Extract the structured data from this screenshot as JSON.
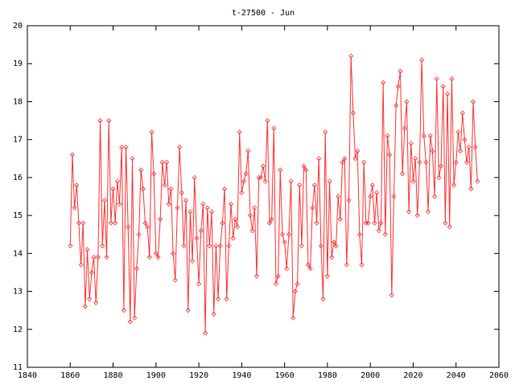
{
  "chart_data": {
    "type": "line",
    "title": "t-27500 - Jun",
    "x": [
      1860,
      1861,
      1862,
      1863,
      1864,
      1865,
      1866,
      1867,
      1868,
      1869,
      1870,
      1871,
      1872,
      1873,
      1874,
      1875,
      1876,
      1877,
      1878,
      1879,
      1880,
      1881,
      1882,
      1883,
      1884,
      1885,
      1886,
      1887,
      1888,
      1889,
      1890,
      1891,
      1892,
      1893,
      1894,
      1895,
      1896,
      1897,
      1898,
      1899,
      1900,
      1901,
      1902,
      1903,
      1904,
      1905,
      1906,
      1907,
      1908,
      1909,
      1910,
      1911,
      1912,
      1913,
      1914,
      1915,
      1916,
      1917,
      1918,
      1919,
      1920,
      1921,
      1922,
      1923,
      1924,
      1925,
      1926,
      1927,
      1928,
      1929,
      1930,
      1931,
      1932,
      1933,
      1934,
      1935,
      1936,
      1937,
      1938,
      1939,
      1940,
      1941,
      1942,
      1943,
      1944,
      1945,
      1946,
      1947,
      1948,
      1949,
      1950,
      1951,
      1952,
      1953,
      1954,
      1955,
      1956,
      1957,
      1958,
      1959,
      1960,
      1961,
      1962,
      1963,
      1964,
      1965,
      1966,
      1967,
      1968,
      1969,
      1970,
      1971,
      1972,
      1973,
      1974,
      1975,
      1976,
      1977,
      1978,
      1979,
      1980,
      1981,
      1982,
      1983,
      1984,
      1985,
      1986,
      1987,
      1988,
      1989,
      1990,
      1991,
      1992,
      1993,
      1994,
      1995,
      1996,
      1997,
      1998,
      1999,
      2000,
      2001,
      2002,
      2003,
      2004,
      2005,
      2006,
      2007,
      2008,
      2009,
      2010,
      2011,
      2012,
      2013,
      2014,
      2015,
      2016,
      2017,
      2018,
      2019,
      2020,
      2021,
      2022,
      2023,
      2024,
      2025,
      2026,
      2027,
      2028,
      2029,
      2030,
      2031,
      2032,
      2033,
      2034,
      2035,
      2036,
      2037,
      2038,
      2039,
      2040,
      2041,
      2042,
      2043,
      2044,
      2045,
      2046,
      2047,
      2048,
      2049,
      2050
    ],
    "series": [
      {
        "color": "#ff3333",
        "values": [
          14.2,
          16.6,
          15.2,
          15.8,
          14.8,
          13.7,
          14.8,
          12.6,
          14.1,
          12.8,
          13.5,
          13.9,
          12.7,
          13.9,
          17.5,
          14.2,
          15.4,
          13.9,
          17.5,
          14.8,
          15.7,
          14.8,
          15.9,
          15.3,
          16.8,
          12.5,
          16.8,
          14.7,
          12.2,
          16.5,
          12.3,
          13.6,
          14.5,
          16.2,
          15.7,
          14.8,
          14.7,
          13.9,
          17.2,
          16.1,
          14.0,
          13.9,
          14.9,
          16.4,
          15.8,
          16.4,
          15.3,
          15.7,
          14.0,
          13.3,
          15.2,
          16.8,
          15.6,
          14.2,
          15.4,
          12.5,
          15.1,
          13.8,
          16.0,
          14.4,
          13.2,
          14.6,
          15.3,
          11.9,
          15.2,
          14.2,
          15.1,
          12.4,
          14.2,
          12.8,
          14.2,
          14.8,
          15.7,
          12.8,
          14.2,
          15.3,
          14.4,
          14.9,
          14.7,
          17.2,
          15.6,
          15.9,
          16.1,
          16.7,
          15.0,
          14.6,
          15.2,
          13.4,
          16.0,
          16.0,
          16.3,
          15.9,
          17.5,
          14.8,
          14.9,
          17.3,
          13.2,
          13.4,
          16.2,
          14.5,
          14.3,
          13.6,
          14.5,
          15.9,
          12.3,
          13.0,
          13.2,
          15.8,
          14.2,
          16.3,
          16.2,
          13.7,
          13.6,
          15.2,
          15.8,
          14.8,
          16.5,
          14.2,
          12.8,
          17.2,
          13.4,
          15.9,
          13.9,
          14.3,
          14.2,
          15.5,
          14.9,
          16.4,
          16.5,
          13.7,
          15.4,
          19.2,
          17.7,
          16.5,
          16.7,
          14.5,
          13.7,
          16.4,
          14.8,
          14.8,
          15.5,
          15.8,
          14.8,
          15.6,
          14.6,
          14.8,
          18.5,
          14.5,
          17.1,
          16.6,
          12.9,
          15.5,
          17.9,
          18.4,
          18.8,
          16.1,
          17.3,
          18.0,
          15.1,
          16.9,
          15.9,
          16.5,
          15.0,
          16.4,
          19.1,
          17.1,
          16.4,
          15.1,
          17.1,
          16.7,
          15.5,
          18.6,
          16.0,
          16.3,
          18.4,
          14.8,
          18.2,
          14.7,
          18.6,
          15.8,
          16.4,
          17.2,
          16.7,
          17.7,
          17.0,
          16.4,
          16.8,
          15.7,
          18.0,
          16.8,
          15.9
        ]
      }
    ],
    "xlim": [
      1840,
      2060
    ],
    "xticks": [
      1840,
      1860,
      1880,
      1900,
      1920,
      1940,
      1960,
      1980,
      2000,
      2020,
      2040,
      2060
    ],
    "ylim": [
      11,
      20
    ],
    "yticks": [
      11,
      12,
      13,
      14,
      15,
      16,
      17,
      18,
      19,
      20
    ]
  }
}
